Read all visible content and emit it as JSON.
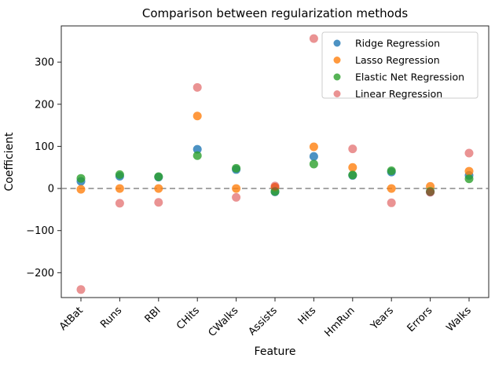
{
  "title": "Comparison between regularization methods",
  "axes": {
    "x_label": "Feature",
    "y_label": "Coefficient",
    "y_tick_labels": [
      "300",
      "200",
      "100",
      "0",
      "−100",
      "−200"
    ]
  },
  "legend": {
    "position": "upper right",
    "items": [
      "Ridge Regression",
      "Lasso Regression",
      "Elastic Net Regression",
      "Linear Regression"
    ]
  },
  "chart_data": {
    "type": "scatter",
    "title": "Comparison between regularization methods",
    "xlabel": "Feature",
    "ylabel": "Coefficient",
    "categories": [
      "AtBat",
      "Runs",
      "RBI",
      "CHits",
      "CWalks",
      "Assists",
      "Hits",
      "HmRun",
      "Years",
      "Errors",
      "Walks"
    ],
    "series": [
      {
        "name": "Ridge Regression",
        "color": "#1f77b4",
        "opacity": 0.8,
        "values": [
          17,
          29,
          27,
          93,
          45,
          -8,
          76,
          31,
          39,
          -8,
          31
        ]
      },
      {
        "name": "Lasso Regression",
        "color": "#ff7f0e",
        "opacity": 0.8,
        "values": [
          -2,
          0,
          0,
          172,
          0,
          3,
          99,
          50,
          0,
          5,
          41
        ]
      },
      {
        "name": "Elastic Net Regression",
        "color": "#2ca02c",
        "opacity": 0.8,
        "values": [
          24,
          33,
          28,
          78,
          48,
          -7,
          58,
          32,
          42,
          -7,
          23
        ]
      },
      {
        "name": "Linear Regression",
        "color": "#d62728",
        "opacity": 0.5,
        "values": [
          -240,
          -35,
          -33,
          240,
          -21,
          6,
          356,
          94,
          -34,
          -9,
          84
        ]
      }
    ],
    "y_ticks": [
      300,
      200,
      100,
      0,
      -100,
      -200
    ],
    "ylim": [
      -259,
      386
    ],
    "zero_line": {
      "value": 0,
      "style": "dashed",
      "color": "#7f7f7f"
    },
    "grid": false,
    "legend_position": "upper right",
    "marker": "circle"
  }
}
